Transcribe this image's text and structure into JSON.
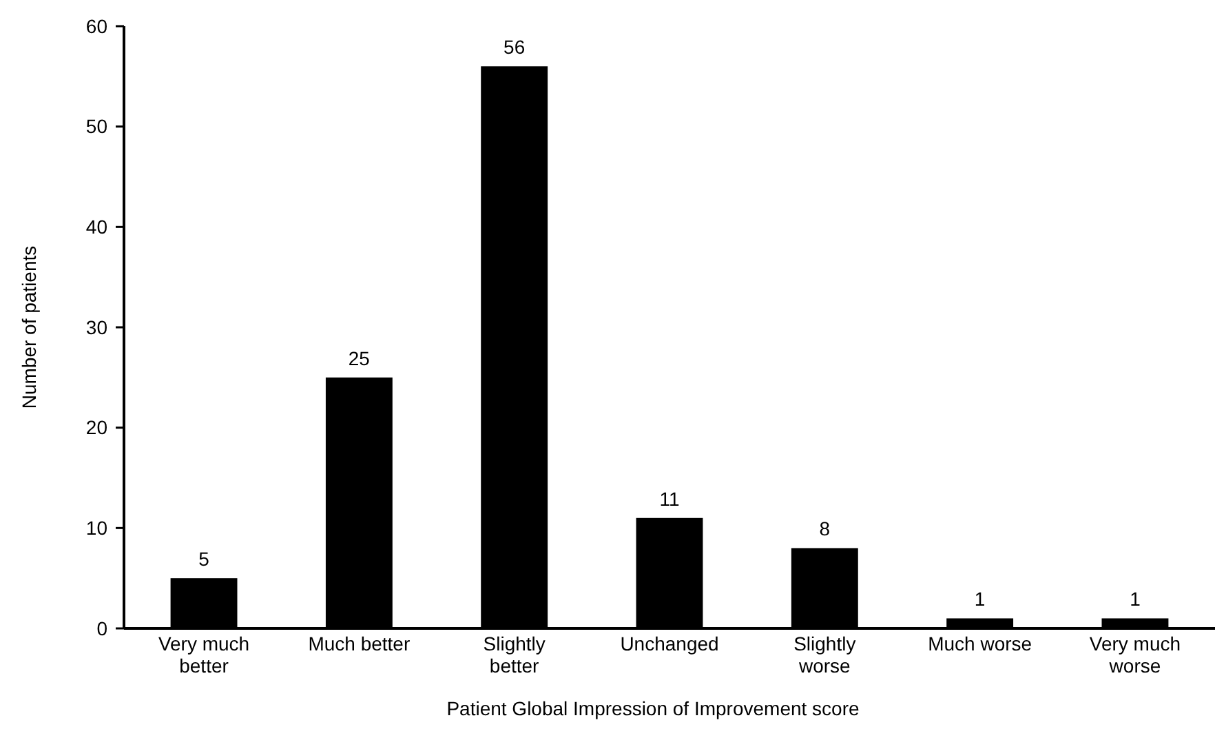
{
  "chart_data": {
    "type": "bar",
    "xlabel": "Patient Global Impression of Improvement score",
    "ylabel": "Number of patients",
    "categories": [
      "Very much better",
      "Much better",
      "Slightly better",
      "Unchanged",
      "Slightly worse",
      "Much worse",
      "Very much worse"
    ],
    "values": [
      5,
      25,
      56,
      11,
      8,
      1,
      1
    ],
    "color": "#000000",
    "data_labels": true,
    "ylim": [
      0,
      60
    ],
    "yticks": [
      0,
      10,
      20,
      30,
      40,
      50,
      60
    ],
    "grid": false
  }
}
